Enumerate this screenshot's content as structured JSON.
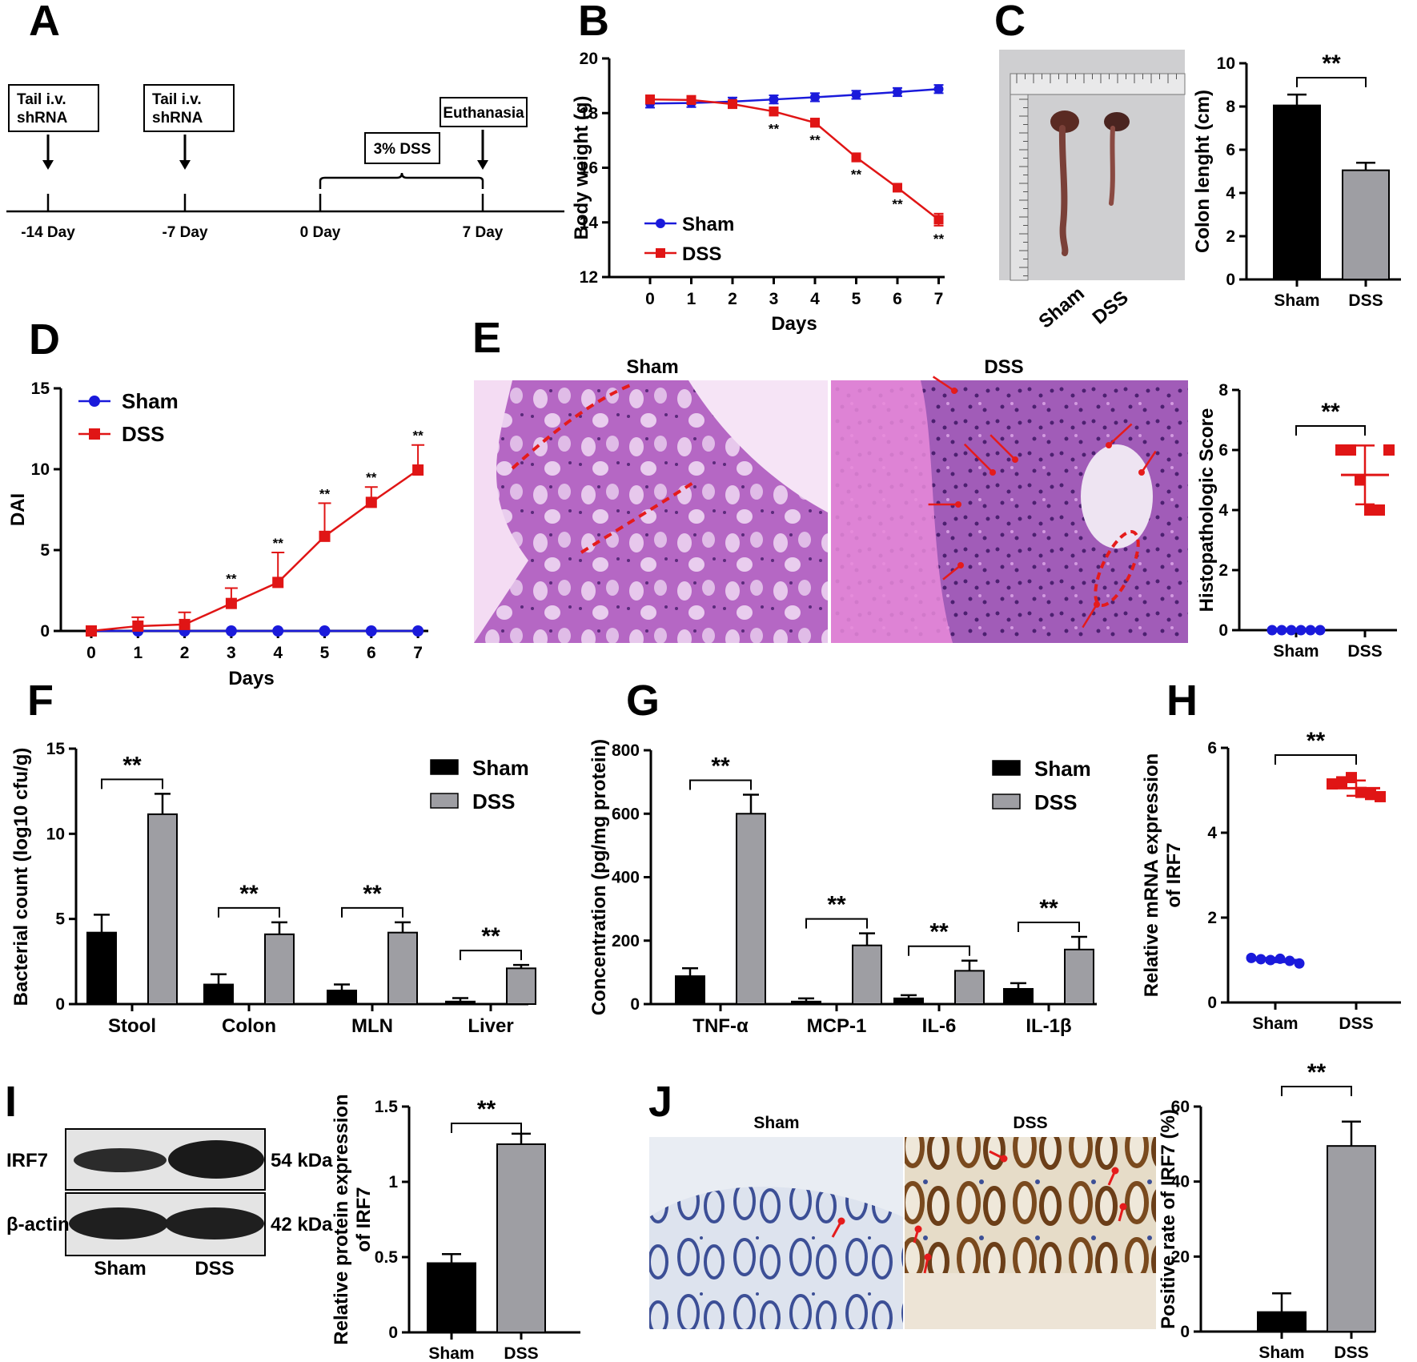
{
  "colors": {
    "sham_line": "#1a1adb",
    "dss_line": "#e01515",
    "sham_bar": "#000000",
    "dss_bar": "#9e9ea3",
    "arrow": "#e51b1b"
  },
  "panels": {
    "A": {
      "label": "A",
      "boxes": [
        {
          "lines": [
            "Tail i.v.",
            "shRNA"
          ]
        },
        {
          "lines": [
            "Tail i.v.",
            "shRNA"
          ]
        },
        {
          "lines": [
            "3% DSS"
          ]
        },
        {
          "lines": [
            "Euthanasia"
          ]
        }
      ],
      "ticks": [
        "-14 Day",
        "-7 Day",
        "0 Day",
        "7 Day"
      ]
    },
    "C_image": {
      "groups": [
        "Sham",
        "DSS"
      ]
    },
    "E_image": {
      "titles": [
        "Sham",
        "DSS"
      ]
    },
    "I_blot": {
      "label": "I",
      "rows": [
        "IRF7",
        "β-actin"
      ],
      "kda": [
        "54 kDa",
        "42 kDa"
      ],
      "groups": [
        "Sham",
        "DSS"
      ]
    },
    "J_image": {
      "label": "J",
      "titles": [
        "Sham",
        "DSS"
      ]
    }
  },
  "chart_data": [
    {
      "id": "B",
      "type": "line",
      "label": "B",
      "x": [
        0,
        1,
        2,
        3,
        4,
        5,
        6,
        7
      ],
      "xlabel": "Days",
      "ylabel": "Body weight (g)",
      "ylim": [
        12,
        20
      ],
      "yticks": [
        12,
        14,
        16,
        18,
        20
      ],
      "legend": "bottom-left",
      "series": [
        {
          "name": "Sham",
          "values": [
            18.35,
            18.37,
            18.42,
            18.5,
            18.58,
            18.67,
            18.77,
            18.88
          ],
          "err": [
            0.15,
            0.15,
            0.15,
            0.15,
            0.15,
            0.15,
            0.15,
            0.15
          ]
        },
        {
          "name": "DSS",
          "values": [
            18.5,
            18.48,
            18.33,
            18.06,
            17.65,
            16.38,
            15.27,
            14.1
          ],
          "err": [
            0.15,
            0.15,
            0.15,
            0.15,
            0.15,
            0.15,
            0.12,
            0.22
          ],
          "sig": [
            "",
            "",
            "",
            "**",
            "**",
            "**",
            "**",
            "**"
          ]
        }
      ]
    },
    {
      "id": "C",
      "type": "bar",
      "categories": [
        "Sham",
        "DSS"
      ],
      "values": [
        8.05,
        5.05
      ],
      "err": [
        0.5,
        0.35
      ],
      "ylabel": "Colon lenght (cm)",
      "ylim": [
        0,
        10
      ],
      "yticks": [
        0,
        2,
        4,
        6,
        8,
        10
      ],
      "sig": "**"
    },
    {
      "id": "D",
      "type": "line",
      "label": "D",
      "x": [
        0,
        1,
        2,
        3,
        4,
        5,
        6,
        7
      ],
      "xlabel": "Days",
      "ylabel": "DAI",
      "ylim": [
        0,
        15
      ],
      "yticks": [
        0,
        5,
        10,
        15
      ],
      "legend": "top-left",
      "series": [
        {
          "name": "Sham",
          "values": [
            0,
            0,
            0,
            0,
            0,
            0,
            0,
            0
          ]
        },
        {
          "name": "DSS",
          "values": [
            0,
            0.3,
            0.4,
            1.7,
            3.0,
            5.85,
            7.95,
            9.95
          ],
          "err": [
            0,
            0.55,
            0.75,
            0.95,
            1.85,
            2.05,
            0.95,
            1.55
          ],
          "sig": [
            "",
            "",
            "",
            "**",
            "**",
            "**",
            "**",
            "**"
          ]
        }
      ]
    },
    {
      "id": "E",
      "type": "scatter",
      "label": "E",
      "categories": [
        "Sham",
        "DSS"
      ],
      "ylabel": "Histopathologic Score",
      "ylim": [
        0,
        8
      ],
      "yticks": [
        0,
        2,
        4,
        6,
        8
      ],
      "sig": "**",
      "series": [
        {
          "name": "Sham",
          "values": [
            0,
            0,
            0,
            0,
            0,
            0
          ],
          "mean": 0
        },
        {
          "name": "DSS",
          "values": [
            6,
            6,
            5,
            4,
            4,
            6
          ],
          "mean": 5.17,
          "sd": 0.98
        }
      ]
    },
    {
      "id": "F",
      "type": "bar",
      "label": "F",
      "categories": [
        "Stool",
        "Colon",
        "MLN",
        "Liver"
      ],
      "ylabel": "Bacterial count (log10 cfu/g)",
      "ylim": [
        0,
        15
      ],
      "yticks": [
        0,
        5,
        10,
        15
      ],
      "legend": "top-right",
      "series": [
        {
          "name": "Sham",
          "values": [
            4.2,
            1.15,
            0.8,
            0.15
          ],
          "err": [
            1.05,
            0.6,
            0.35,
            0.2
          ]
        },
        {
          "name": "DSS",
          "values": [
            11.15,
            4.1,
            4.2,
            2.1
          ],
          "err": [
            1.2,
            0.7,
            0.6,
            0.2
          ]
        }
      ],
      "sig": [
        "**",
        "**",
        "**",
        "**"
      ]
    },
    {
      "id": "G",
      "type": "bar",
      "label": "G",
      "categories": [
        "TNF-α",
        "MCP-1",
        "IL-6",
        "IL-1β"
      ],
      "ylabel": "Concentration (pg/mg protein)",
      "ylim": [
        0,
        800
      ],
      "yticks": [
        0,
        200,
        400,
        600,
        800
      ],
      "legend": "top-right",
      "series": [
        {
          "name": "Sham",
          "values": [
            88,
            8,
            18,
            48
          ],
          "err": [
            25,
            10,
            10,
            18
          ]
        },
        {
          "name": "DSS",
          "values": [
            600,
            185,
            105,
            172
          ],
          "err": [
            60,
            38,
            32,
            40
          ]
        }
      ],
      "sig": [
        "**",
        "**",
        "**",
        "**"
      ]
    },
    {
      "id": "H",
      "type": "scatter",
      "label": "H",
      "categories": [
        "Sham",
        "DSS"
      ],
      "ylabel": "Relative mRNA expression of IRF7",
      "ylim": [
        0,
        6
      ],
      "yticks": [
        0,
        2,
        4,
        6
      ],
      "sig": "**",
      "series": [
        {
          "name": "Sham",
          "values": [
            1.05,
            1.02,
            1.0,
            1.03,
            0.98,
            0.92
          ],
          "mean": 1.0,
          "sd": 0.05
        },
        {
          "name": "DSS",
          "values": [
            5.15,
            5.2,
            5.3,
            4.95,
            4.9,
            4.85
          ],
          "mean": 5.05,
          "sd": 0.18
        }
      ]
    },
    {
      "id": "I",
      "type": "bar",
      "categories": [
        "Sham",
        "DSS"
      ],
      "values": [
        0.46,
        1.25
      ],
      "err": [
        0.06,
        0.07
      ],
      "ylabel": "Relative protein expression of IRF7",
      "ylim": [
        0,
        1.5
      ],
      "yticks": [
        0.0,
        0.5,
        1.0,
        1.5
      ],
      "sig": "**"
    },
    {
      "id": "J",
      "type": "bar",
      "categories": [
        "Sham",
        "DSS"
      ],
      "values": [
        5.2,
        49.5
      ],
      "err": [
        5,
        6.5
      ],
      "ylabel": "Positive rate of IRF7 (%)",
      "ylim": [
        0,
        60
      ],
      "yticks": [
        0,
        20,
        40,
        60
      ],
      "sig": "**"
    }
  ]
}
